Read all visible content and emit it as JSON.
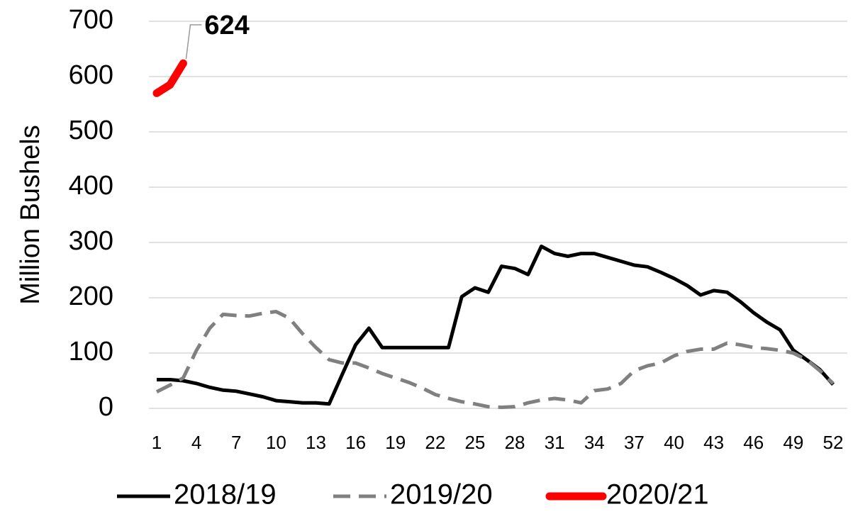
{
  "chart_data": {
    "type": "line",
    "y_label": "Million Bushels",
    "x": [
      1,
      2,
      3,
      4,
      5,
      6,
      7,
      8,
      9,
      10,
      11,
      12,
      13,
      14,
      15,
      16,
      17,
      18,
      19,
      20,
      21,
      22,
      23,
      24,
      25,
      26,
      27,
      28,
      29,
      30,
      31,
      32,
      33,
      34,
      35,
      36,
      37,
      38,
      39,
      40,
      41,
      42,
      43,
      44,
      45,
      46,
      47,
      48,
      49,
      50,
      51,
      52
    ],
    "xlim": [
      1,
      52
    ],
    "xticks": [
      1,
      4,
      7,
      10,
      13,
      16,
      19,
      22,
      25,
      28,
      31,
      34,
      37,
      40,
      43,
      46,
      49,
      52
    ],
    "ylim": [
      0,
      700
    ],
    "yticks": [
      0,
      100,
      200,
      300,
      400,
      500,
      600,
      700
    ],
    "grid": true,
    "legend": "bottom",
    "series": [
      {
        "name": "2018/19",
        "color": "#000000",
        "dash": "solid",
        "values": [
          52,
          52,
          50,
          45,
          38,
          33,
          31,
          26,
          21,
          14,
          12,
          10,
          10,
          8,
          62,
          115,
          145,
          110,
          110,
          110,
          110,
          110,
          110,
          202,
          218,
          210,
          257,
          253,
          242,
          293,
          280,
          275,
          280,
          280,
          273,
          266,
          259,
          256,
          246,
          235,
          222,
          205,
          213,
          210,
          193,
          173,
          156,
          142,
          105,
          88,
          70,
          43
        ]
      },
      {
        "name": "2019/20",
        "color": "#808080",
        "dash": "dashed",
        "values": [
          30,
          42,
          55,
          105,
          145,
          170,
          168,
          167,
          172,
          175,
          163,
          135,
          110,
          88,
          82,
          82,
          73,
          63,
          55,
          47,
          37,
          25,
          18,
          12,
          8,
          3,
          2,
          3,
          10,
          15,
          18,
          15,
          10,
          32,
          35,
          45,
          68,
          77,
          82,
          95,
          103,
          107,
          107,
          118,
          115,
          110,
          108,
          105,
          100,
          88,
          68,
          45
        ]
      },
      {
        "name": "2020/21",
        "color": "#ff0000",
        "dash": "solid",
        "values": [
          570,
          585,
          624,
          null,
          null,
          null,
          null,
          null,
          null,
          null,
          null,
          null,
          null,
          null,
          null,
          null,
          null,
          null,
          null,
          null,
          null,
          null,
          null,
          null,
          null,
          null,
          null,
          null,
          null,
          null,
          null,
          null,
          null,
          null,
          null,
          null,
          null,
          null,
          null,
          null,
          null,
          null,
          null,
          null,
          null,
          null,
          null,
          null,
          null,
          null,
          null,
          null
        ]
      }
    ],
    "annotated_point": "chart_data.series.2.values.2"
  }
}
